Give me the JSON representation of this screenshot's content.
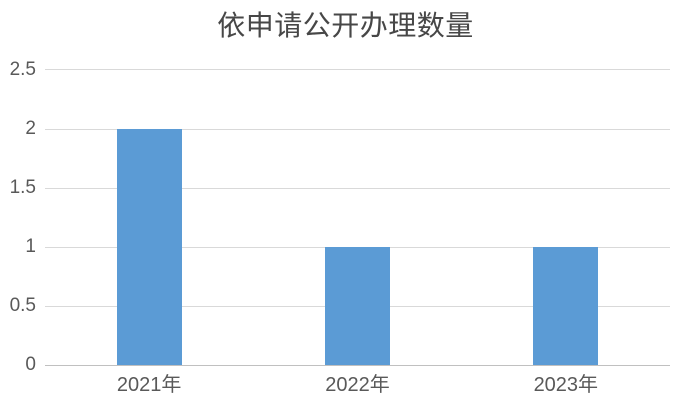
{
  "chart_data": {
    "type": "bar",
    "title": "依申请公开办理数量",
    "categories": [
      "2021年",
      "2022年",
      "2023年"
    ],
    "values": [
      2,
      1,
      1
    ],
    "ylim": [
      0,
      2.5
    ],
    "ytick_step": 0.5,
    "ytick_labels": [
      "0",
      "0.5",
      "1",
      "1.5",
      "2",
      "2.5"
    ],
    "xlabel": "",
    "ylabel": "",
    "grid": true,
    "legend_position": "none",
    "colors": {
      "bar": "#5B9BD5",
      "gridline": "#D9D9D9",
      "axis_line": "#C0C0C0",
      "axis_label": "#595959",
      "title": "#474747"
    }
  }
}
